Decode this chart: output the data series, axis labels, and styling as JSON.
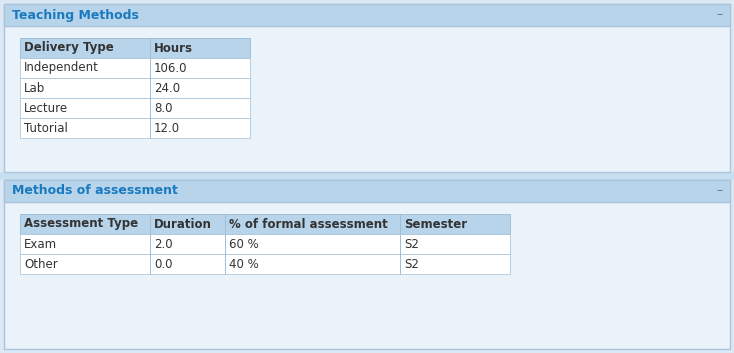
{
  "section1_title": "Teaching Methods",
  "section1_headers": [
    "Delivery Type",
    "Hours"
  ],
  "section1_rows": [
    [
      "Independent",
      "106.0"
    ],
    [
      "Lab",
      "24.0"
    ],
    [
      "Lecture",
      "8.0"
    ],
    [
      "Tutorial",
      "12.0"
    ]
  ],
  "section2_title": "Methods of assessment",
  "section2_headers": [
    "Assessment Type",
    "Duration",
    "% of formal assessment",
    "Semester"
  ],
  "section2_rows": [
    [
      "Exam",
      "2.0",
      "60 %",
      "S2"
    ],
    [
      "Other",
      "0.0",
      "40 %",
      "S2"
    ]
  ],
  "outer_bg": "#dce9f5",
  "panel_bg": "#eaf2fa",
  "header_bar_bg": "#b8d4eb",
  "header_bar_text": "#1a7abf",
  "table_header_bg": "#b8d4eb",
  "table_header_text": "#333333",
  "table_row_bg": "#ffffff",
  "table_border": "#a0c0d8",
  "cell_text": "#333333",
  "minus_color": "#4488aa",
  "outer_border": "#aac4dc",
  "gap_bg": "#c8dff0"
}
